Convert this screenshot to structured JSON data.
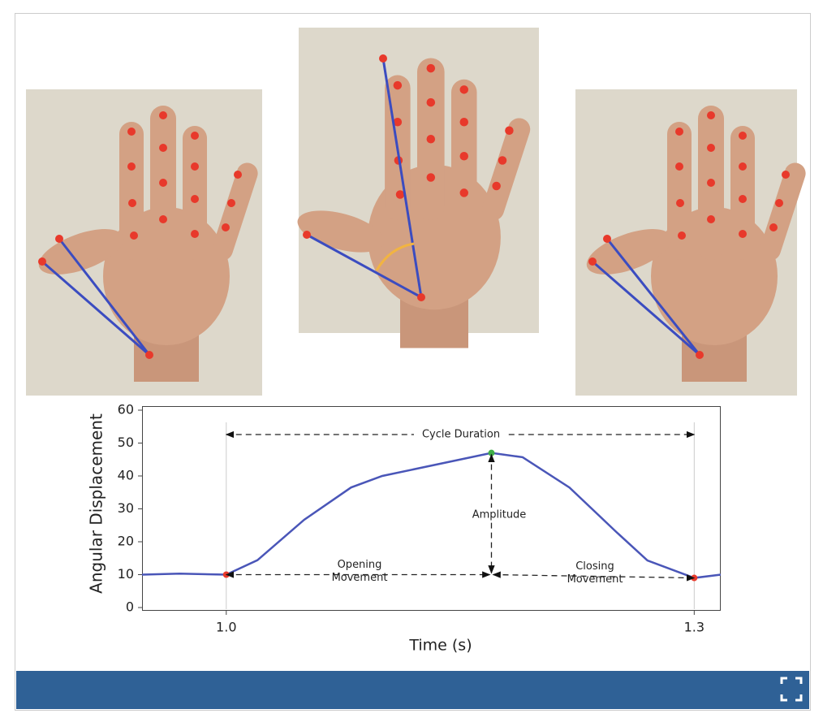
{
  "chart_data": {
    "type": "line",
    "x": [
      0.946,
      0.97,
      1.0,
      1.02,
      1.05,
      1.08,
      1.1,
      1.15,
      1.17,
      1.19,
      1.22,
      1.25,
      1.27,
      1.3,
      1.317
    ],
    "values": [
      10,
      10.3,
      10,
      14.4,
      26.7,
      36.5,
      40,
      45,
      47,
      45.7,
      36.5,
      23,
      14.3,
      9,
      10
    ],
    "marker_colors": [
      null,
      null,
      "#e8392b",
      null,
      null,
      null,
      null,
      null,
      "#3fae49",
      null,
      null,
      null,
      null,
      "#e8392b",
      null
    ],
    "color": "#4a56b8",
    "xlim": [
      0.946,
      1.317
    ],
    "xticks": [
      {
        "value": 1.0,
        "label": "1.0"
      },
      {
        "value": 1.3,
        "label": "1.3"
      }
    ],
    "ylim": [
      0,
      60
    ],
    "yticks": [
      0,
      10,
      20,
      30,
      40,
      50,
      60
    ],
    "x_label": "Time (s)",
    "y_label": "Angular Displacement",
    "annotations": [
      "Cycle Duration",
      "Amplitude",
      "Opening Movement",
      "Closing Movement"
    ]
  }
}
